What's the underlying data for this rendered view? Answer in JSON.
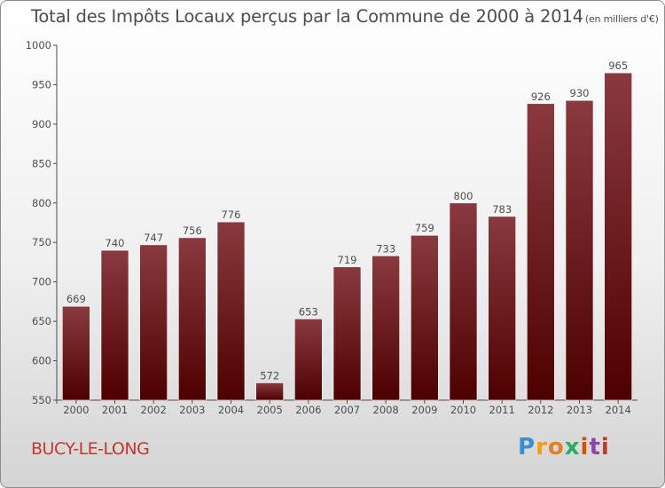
{
  "header": {
    "title": "Total des Impôts Locaux perçus par la Commune de 2000 à 2014",
    "unit": "(en milliers d'€)"
  },
  "footer": {
    "commune": "BUCY-LE-LONG",
    "logo_parts": [
      "P",
      "r",
      "o",
      "x",
      "i",
      "t",
      "i"
    ]
  },
  "colors": {
    "bar_top": "#8a3a3f",
    "bar_bottom": "#4e0000",
    "axis": "#4d4d4d",
    "text": "#4d4d4d",
    "commune": "#c0392b"
  },
  "chart_data": {
    "type": "bar",
    "title": "Total des Impôts Locaux perçus par la Commune de 2000 à 2014",
    "xlabel": "",
    "ylabel": "",
    "categories": [
      "2000",
      "2001",
      "2002",
      "2003",
      "2004",
      "2005",
      "2006",
      "2007",
      "2008",
      "2009",
      "2010",
      "2011",
      "2012",
      "2013",
      "2014"
    ],
    "values": [
      669,
      740,
      747,
      756,
      776,
      572,
      653,
      719,
      733,
      759,
      800,
      783,
      926,
      930,
      965
    ],
    "ylim": [
      550,
      1000
    ],
    "yticks": [
      550,
      600,
      650,
      700,
      750,
      800,
      850,
      900,
      950,
      1000
    ],
    "grid": false
  }
}
